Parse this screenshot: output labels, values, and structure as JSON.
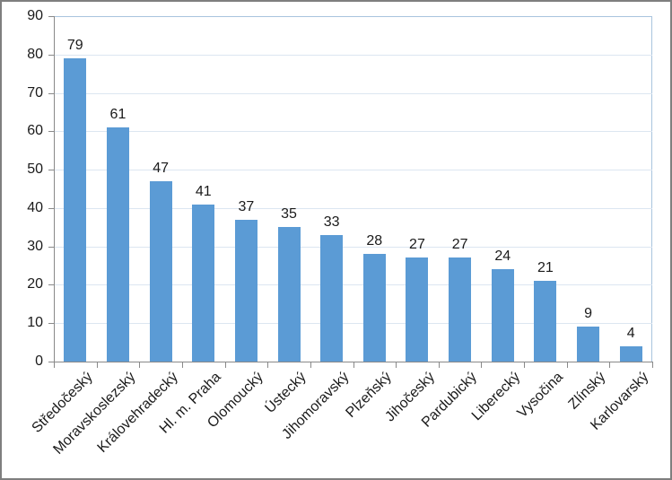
{
  "chart_data": {
    "type": "bar",
    "title": "",
    "xlabel": "",
    "ylabel": "",
    "categories": [
      "Středočeský",
      "Moravskoslezský",
      "Královehradecký",
      "Hl. m. Praha",
      "Olomoucký",
      "Ústecký",
      "Jihomoravský",
      "Plzeňský",
      "Jihočeský",
      "Pardubický",
      "Liberecký",
      "Vysočina",
      "Zlínský",
      "Karlovarský"
    ],
    "values": [
      79,
      61,
      47,
      41,
      37,
      35,
      33,
      28,
      27,
      27,
      24,
      21,
      9,
      4
    ],
    "ylim": [
      0,
      90
    ],
    "yticks": [
      0,
      10,
      20,
      30,
      40,
      50,
      60,
      70,
      80,
      90
    ],
    "grid": true,
    "legend": false,
    "data_labels": true,
    "x_tick_label_rotation_deg": 45,
    "colors": {
      "bar": "#5B9BD5",
      "gridline": "#DCE6F1",
      "plot_border": "#A9C4DE",
      "axis": "#898989",
      "text": "#1A1A1A",
      "chart_border": "#7F7F7F",
      "background": "#FFFFFF"
    }
  }
}
